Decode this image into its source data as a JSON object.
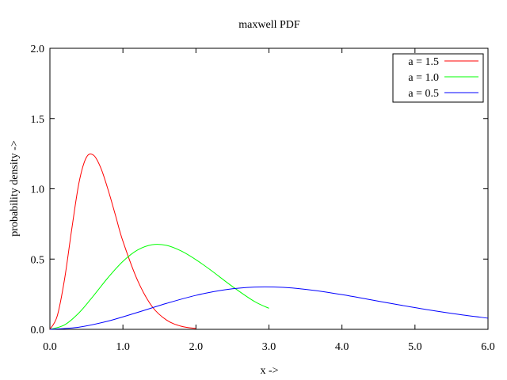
{
  "chart_data": {
    "type": "line",
    "title": "maxwell PDF",
    "xlabel": "x ->",
    "ylabel": "probability density ->",
    "xlim": [
      0,
      6
    ],
    "ylim": [
      0,
      2
    ],
    "x_ticks": [
      {
        "value": 0,
        "label": "0.0"
      },
      {
        "value": 1,
        "label": "1.0"
      },
      {
        "value": 2,
        "label": "2.0"
      },
      {
        "value": 3,
        "label": "3.0"
      },
      {
        "value": 4,
        "label": "4.0"
      },
      {
        "value": 5,
        "label": "5.0"
      },
      {
        "value": 6,
        "label": "6.0"
      }
    ],
    "y_ticks": [
      {
        "value": 0,
        "label": "0.0"
      },
      {
        "value": 0.5,
        "label": "0.5"
      },
      {
        "value": 1,
        "label": "1.0"
      },
      {
        "value": 1.5,
        "label": "1.5"
      },
      {
        "value": 2,
        "label": "2.0"
      }
    ],
    "grid": false,
    "legend_position": "top-right",
    "series": [
      {
        "name": "a = 1.5",
        "color": "#ff0000",
        "x": [
          0,
          0.1,
          0.2,
          0.3,
          0.4,
          0.5,
          0.6,
          0.7,
          0.8,
          0.9,
          1.0,
          1.2,
          1.4,
          1.6,
          1.8,
          2.0
        ],
        "y": [
          0,
          0.0945,
          0.355,
          0.716,
          1.048,
          1.224,
          1.238,
          1.145,
          0.988,
          0.808,
          0.627,
          0.349,
          0.162,
          0.065,
          0.022,
          0.006
        ]
      },
      {
        "name": "a = 1.0",
        "color": "#00ff00",
        "x": [
          0,
          0.2,
          0.4,
          0.6,
          0.8,
          1.0,
          1.2,
          1.4,
          1.6,
          1.8,
          2.0,
          2.2,
          2.5,
          2.8,
          3.0
        ],
        "y": [
          0,
          0.0314,
          0.1183,
          0.2408,
          0.3705,
          0.4839,
          0.5642,
          0.6022,
          0.5973,
          0.5573,
          0.4956,
          0.4224,
          0.3046,
          0.1987,
          0.1499
        ]
      },
      {
        "name": "a = 0.5",
        "color": "#0000ff",
        "x": [
          0,
          0.4,
          0.8,
          1.2,
          1.6,
          2.0,
          2.4,
          2.8,
          3.2,
          3.6,
          4.0,
          4.4,
          4.8,
          5.2,
          5.6,
          6.0
        ],
        "y": [
          0,
          0.0157,
          0.0592,
          0.1204,
          0.1852,
          0.242,
          0.2819,
          0.301,
          0.2986,
          0.2784,
          0.247,
          0.2098,
          0.1724,
          0.1374,
          0.1063,
          0.0794
        ]
      }
    ]
  }
}
